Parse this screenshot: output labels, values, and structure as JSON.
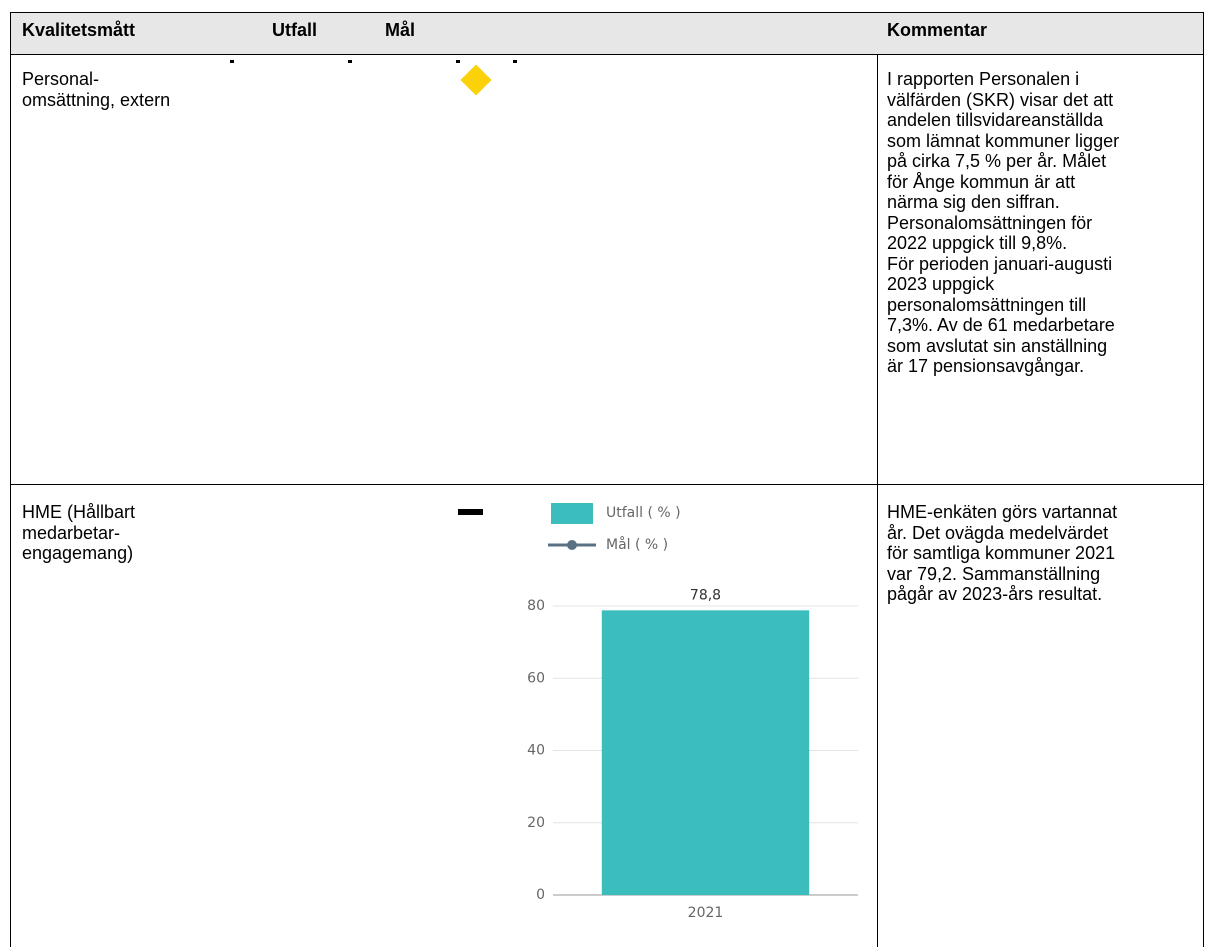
{
  "table": {
    "header": [
      "Kvalitetsmått",
      "Utfall",
      "Mål",
      "Kommentar"
    ],
    "rows": [
      {
        "measure": [
          "Personal-",
          "omsättning, extern"
        ],
        "comment": [
          "I rapporten Personalen i",
          "välfärden (SKR) visar det att",
          "andelen tillsvidareanställda",
          "som lämnat kommuner ligger",
          "på cirka 7,5 % per år. Målet",
          "för Ånge kommun är att",
          "närma sig den siffran.",
          "Personalomsättningen för",
          "2022 uppgick till 9,8%.",
          "För perioden januari-augusti",
          "2023 uppgick",
          "personalomsättningen till",
          "7,3%. Av de 61 medarbetare",
          "som avslutat sin anställning",
          "är 17 pensionsavgångar."
        ]
      },
      {
        "measure": [
          "HME (Hållbart",
          "medarbetar-",
          "engagemang)"
        ],
        "comment": [
          "HME-enkäten görs vartannat",
          "år. Det ovägda medelvärdet",
          "för samtliga kommuner 2021",
          "var 79,2. Sammanställning",
          "pågår av 2023-års resultat."
        ]
      }
    ]
  },
  "chart_data": {
    "type": "bar",
    "categories": [
      "2021"
    ],
    "series": [
      {
        "name": "Utfall ( % )",
        "color": "#3bbdbd",
        "values": [
          78.8
        ],
        "value_labels": [
          "78,8"
        ]
      },
      {
        "name": "Mål ( % )",
        "color": "#5a7184",
        "values": [
          null
        ]
      }
    ],
    "ylim": [
      0,
      80
    ],
    "yticks": [
      0,
      20,
      40,
      60,
      80
    ],
    "grid": true
  }
}
